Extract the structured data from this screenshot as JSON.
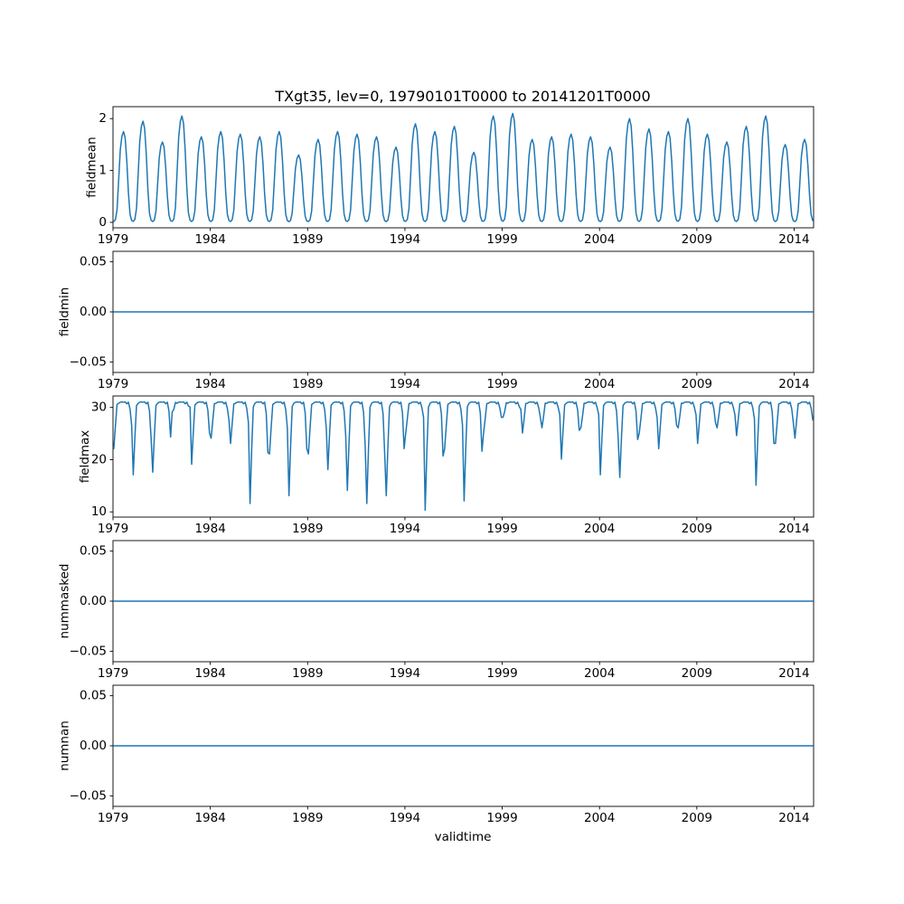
{
  "figure": {
    "title": "TXgt35, lev=0, 19790101T0000 to 20141201T0000",
    "xlabel": "validtime",
    "background_color": "#ffffff",
    "line_color": "#1f77b4",
    "axis_color": "#000000"
  },
  "chart_data": [
    {
      "type": "line",
      "name": "fieldmean",
      "ylabel": "fieldmean",
      "xlim": [
        1979,
        2015
      ],
      "ylim": [
        -0.105,
        2.23
      ],
      "xticks": [
        1979,
        1984,
        1989,
        1994,
        1999,
        2004,
        2009,
        2014
      ],
      "xtick_labels": [
        "1979",
        "1984",
        "1989",
        "1994",
        "1999",
        "2004",
        "2009",
        "2014"
      ],
      "yticks": [
        0,
        1,
        2
      ],
      "ytick_labels": [
        "0",
        "1",
        "2"
      ],
      "grid": false,
      "legend": false,
      "series": {
        "model": "seasonal",
        "start_year": 1979,
        "points_per_year": 12,
        "monthly_profile": [
          0.01,
          0.03,
          0.14,
          0.47,
          0.8,
          0.95,
          1.0,
          0.93,
          0.68,
          0.33,
          0.09,
          0.02
        ],
        "annual_peaks": [
          1.75,
          1.95,
          1.55,
          2.05,
          1.65,
          1.75,
          1.7,
          1.65,
          1.75,
          1.3,
          1.6,
          1.75,
          1.7,
          1.65,
          1.45,
          1.9,
          1.75,
          1.85,
          1.35,
          2.05,
          2.1,
          1.6,
          1.65,
          1.7,
          1.65,
          1.45,
          2.0,
          1.8,
          1.75,
          2.0,
          1.7,
          1.55,
          1.85,
          2.05,
          1.5,
          1.6
        ]
      }
    },
    {
      "type": "line",
      "name": "fieldmin",
      "ylabel": "fieldmin",
      "xlim": [
        1979,
        2015
      ],
      "ylim": [
        -0.0605,
        0.0605
      ],
      "xticks": [
        1979,
        1984,
        1989,
        1994,
        1999,
        2004,
        2009,
        2014
      ],
      "xtick_labels": [
        "1979",
        "1984",
        "1989",
        "1994",
        "1999",
        "2004",
        "2009",
        "2014"
      ],
      "yticks": [
        -0.05,
        0,
        0.05
      ],
      "ytick_labels": [
        "−0.05",
        "0.00",
        "0.05"
      ],
      "grid": false,
      "legend": false,
      "series": {
        "model": "constant",
        "value": 0,
        "x_first": 1979.04,
        "x_last": 2014.96
      }
    },
    {
      "type": "line",
      "name": "fieldmax",
      "ylabel": "fieldmax",
      "xlim": [
        1979,
        2015
      ],
      "ylim": [
        9.0,
        32.2
      ],
      "xticks": [
        1979,
        1984,
        1989,
        1994,
        1999,
        2004,
        2009,
        2014
      ],
      "xtick_labels": [
        "1979",
        "1984",
        "1989",
        "1994",
        "1999",
        "2004",
        "2009",
        "2014"
      ],
      "yticks": [
        10,
        20,
        30
      ],
      "ytick_labels": [
        "10",
        "20",
        "30"
      ],
      "grid": false,
      "legend": false,
      "series": {
        "model": "seasonal-dip",
        "start_year": 1979,
        "points_per_year": 12,
        "baseline": 30.9,
        "monthly_jitter": [
          0.1,
          -0.4,
          0.15,
          -0.1,
          0.1,
          0.15,
          0.1,
          0.15,
          -0.2,
          0.1,
          -0.5,
          0.15
        ],
        "monthly_dip_profile": [
          1.0,
          0.45,
          0.05,
          0,
          0,
          0,
          0,
          0,
          0,
          0,
          0.08,
          0.5
        ],
        "annual_minima": [
          22,
          17,
          17.5,
          29,
          19,
          24,
          23,
          11.5,
          21,
          13,
          21,
          18,
          14,
          11.5,
          13,
          25,
          10.2,
          22,
          12,
          25,
          28,
          25,
          26,
          20,
          26,
          17,
          16.5,
          25,
          22,
          26,
          23,
          26,
          24.5,
          15,
          23,
          24
        ]
      }
    },
    {
      "type": "line",
      "name": "nummasked",
      "ylabel": "nummasked",
      "xlim": [
        1979,
        2015
      ],
      "ylim": [
        -0.0605,
        0.0605
      ],
      "xticks": [
        1979,
        1984,
        1989,
        1994,
        1999,
        2004,
        2009,
        2014
      ],
      "xtick_labels": [
        "1979",
        "1984",
        "1989",
        "1994",
        "1999",
        "2004",
        "2009",
        "2014"
      ],
      "yticks": [
        -0.05,
        0,
        0.05
      ],
      "ytick_labels": [
        "−0.05",
        "0.00",
        "0.05"
      ],
      "grid": false,
      "legend": false,
      "series": {
        "model": "constant",
        "value": 0,
        "x_first": 1979.04,
        "x_last": 2014.96
      }
    },
    {
      "type": "line",
      "name": "numnan",
      "ylabel": "numnan",
      "xlim": [
        1979,
        2015
      ],
      "ylim": [
        -0.0605,
        0.0605
      ],
      "xticks": [
        1979,
        1984,
        1989,
        1994,
        1999,
        2004,
        2009,
        2014
      ],
      "xtick_labels": [
        "1979",
        "1984",
        "1989",
        "1994",
        "1999",
        "2004",
        "2009",
        "2014"
      ],
      "yticks": [
        -0.05,
        0,
        0.05
      ],
      "ytick_labels": [
        "−0.05",
        "0.00",
        "0.05"
      ],
      "grid": false,
      "legend": false,
      "series": {
        "model": "constant",
        "value": 0,
        "x_first": 1979.04,
        "x_last": 2014.96
      }
    }
  ]
}
